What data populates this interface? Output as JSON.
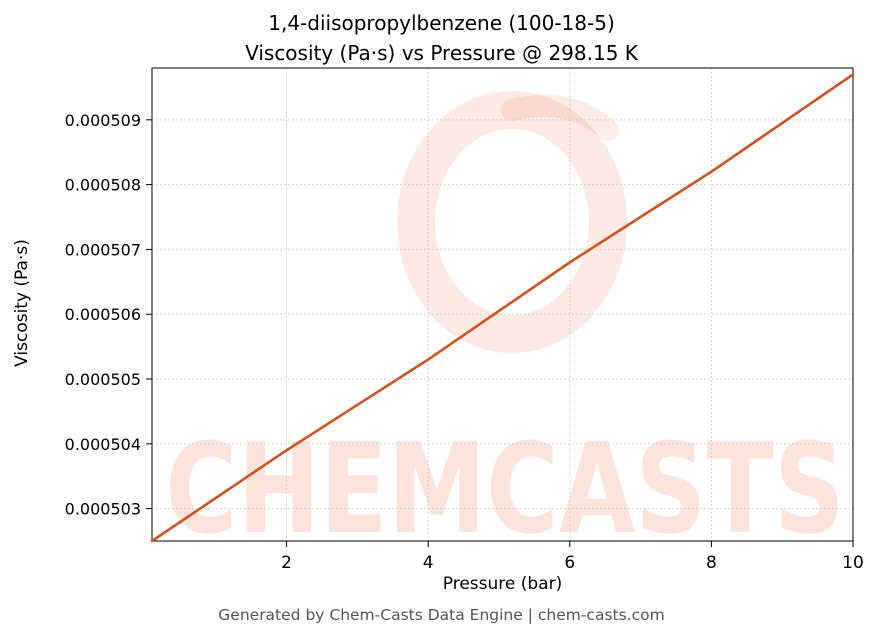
{
  "title": {
    "line1": "1,4-diisopropylbenzene (100-18-5)",
    "line2": "Viscosity (Pa·s) vs Pressure @ 298.15 K"
  },
  "footer": "Generated by Chem-Casts Data Engine | chem-casts.com",
  "watermark": {
    "text": "CHEMCASTS"
  },
  "colors": {
    "line": "#d2521b",
    "watermark": "#ee5b33",
    "grid": "#c8c8c8",
    "axis": "#000000",
    "footer_text": "#565656"
  },
  "chart_data": {
    "type": "line",
    "title": "1,4-diisopropylbenzene (100-18-5) — Viscosity (Pa·s) vs Pressure @ 298.15 K",
    "xlabel": "Pressure (bar)",
    "ylabel": "Viscosity (Pa·s)",
    "xlim": [
      0.1,
      10
    ],
    "ylim": [
      0.0005025,
      0.0005098
    ],
    "x_ticks": [
      2,
      4,
      6,
      8,
      10
    ],
    "y_ticks": [
      0.000503,
      0.000504,
      0.000505,
      0.000506,
      0.000507,
      0.000508,
      0.000509
    ],
    "grid": true,
    "legend": "none",
    "line_color": "#d2521b",
    "series": [
      {
        "name": "viscosity_vs_pressure",
        "x": [
          0.1,
          2,
          4,
          6,
          8,
          10
        ],
        "y": [
          0.0005025,
          0.0005039,
          0.0005053,
          0.0005068,
          0.0005082,
          0.0005097
        ]
      }
    ]
  }
}
